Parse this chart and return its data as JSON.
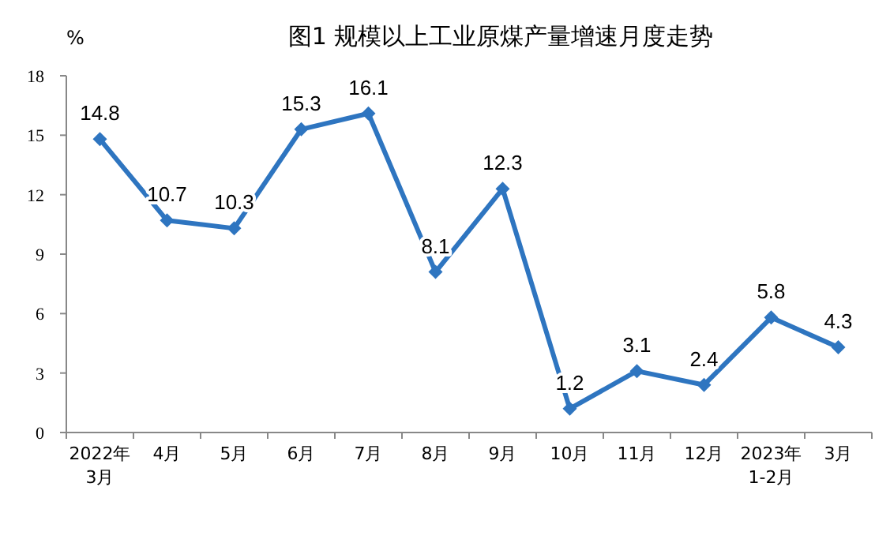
{
  "chart_data": {
    "type": "line",
    "title": "图1  规模以上工业原煤产量增速月度走势",
    "ylabel": "%",
    "categories": [
      "2022年\n3月",
      "4月",
      "5月",
      "6月",
      "7月",
      "8月",
      "9月",
      "10月",
      "11月",
      "12月",
      "2023年\n1-2月",
      "3月"
    ],
    "series": [
      {
        "color": "#2e75c0",
        "values": [
          14.8,
          10.7,
          10.3,
          15.3,
          16.1,
          8.1,
          12.3,
          1.2,
          3.1,
          2.4,
          5.8,
          4.3
        ]
      }
    ],
    "ylim": [
      0,
      18
    ],
    "yticks": [
      0,
      3,
      6,
      9,
      12,
      15,
      18
    ],
    "data_labels": true,
    "marker": "diamond",
    "line_style": "solid",
    "grid": false
  }
}
